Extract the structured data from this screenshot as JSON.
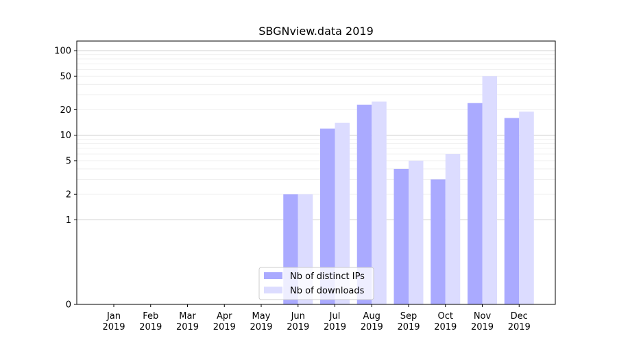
{
  "chart_data": {
    "type": "bar",
    "title": "SBGNview.data 2019",
    "xlabel": "",
    "ylabel": "",
    "y_scale": "symlog",
    "categories": [
      [
        "Jan",
        "2019"
      ],
      [
        "Feb",
        "2019"
      ],
      [
        "Mar",
        "2019"
      ],
      [
        "Apr",
        "2019"
      ],
      [
        "May",
        "2019"
      ],
      [
        "Jun",
        "2019"
      ],
      [
        "Jul",
        "2019"
      ],
      [
        "Aug",
        "2019"
      ],
      [
        "Sep",
        "2019"
      ],
      [
        "Oct",
        "2019"
      ],
      [
        "Nov",
        "2019"
      ],
      [
        "Dec",
        "2019"
      ]
    ],
    "series": [
      {
        "name": "Nb of distinct IPs",
        "color": "#aaaaff",
        "values": [
          0,
          0,
          0,
          0,
          0,
          2,
          12,
          23,
          4,
          3,
          24,
          16
        ]
      },
      {
        "name": "Nb of downloads",
        "color": "#dcdcff",
        "values": [
          0,
          0,
          0,
          0,
          0,
          2,
          14,
          25,
          5,
          6,
          50,
          19
        ]
      }
    ],
    "y_ticks": [
      {
        "value": 0,
        "label": "0"
      },
      {
        "value": 1,
        "label": "1"
      },
      {
        "value": 2,
        "label": "2"
      },
      {
        "value": 5,
        "label": "5"
      },
      {
        "value": 10,
        "label": "10"
      },
      {
        "value": 20,
        "label": "20"
      },
      {
        "value": 50,
        "label": "50"
      },
      {
        "value": 100,
        "label": "100"
      }
    ],
    "ylim": [
      0,
      130
    ],
    "grid": true,
    "legend_position": "lower-center"
  }
}
